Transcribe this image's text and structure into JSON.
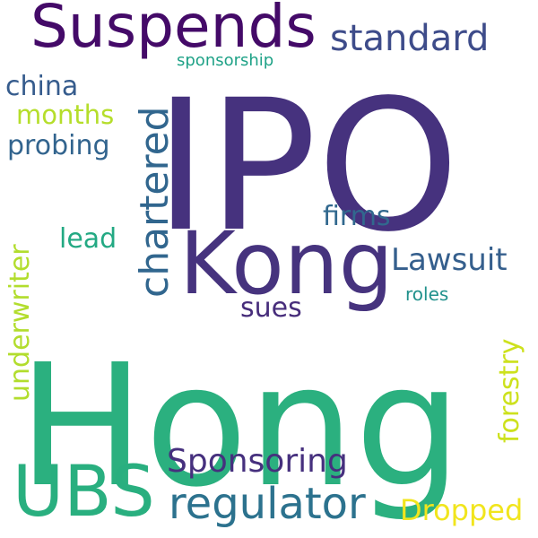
{
  "cloud": {
    "words": [
      {
        "text": "Hong",
        "color": "#2bb07f"
      },
      {
        "text": "IPO",
        "color": "#46327e"
      },
      {
        "text": "Kong",
        "color": "#46337e"
      },
      {
        "text": "Suspends",
        "color": "#440a68"
      },
      {
        "text": "UBS",
        "color": "#29af7f"
      },
      {
        "text": "regulator",
        "color": "#2c728e"
      },
      {
        "text": "chartered",
        "color": "#31668e"
      },
      {
        "text": "standard",
        "color": "#3e4c8a"
      },
      {
        "text": "Sponsoring",
        "color": "#46307e"
      },
      {
        "text": "Lawsuit",
        "color": "#355f8d"
      },
      {
        "text": "underwriter",
        "color": "#b2dd2d"
      },
      {
        "text": "forestry",
        "color": "#cde11d"
      },
      {
        "text": "Dropped",
        "color": "#f1e51d"
      },
      {
        "text": "firms",
        "color": "#31688e"
      },
      {
        "text": "sues",
        "color": "#472d7b"
      },
      {
        "text": "probing",
        "color": "#32648e"
      },
      {
        "text": "china",
        "color": "#365c8d"
      },
      {
        "text": "months",
        "color": "#b5de2b"
      },
      {
        "text": "lead",
        "color": "#23a983"
      },
      {
        "text": "roles",
        "color": "#21918c"
      },
      {
        "text": "sponsorship",
        "color": "#1fa287"
      }
    ]
  }
}
